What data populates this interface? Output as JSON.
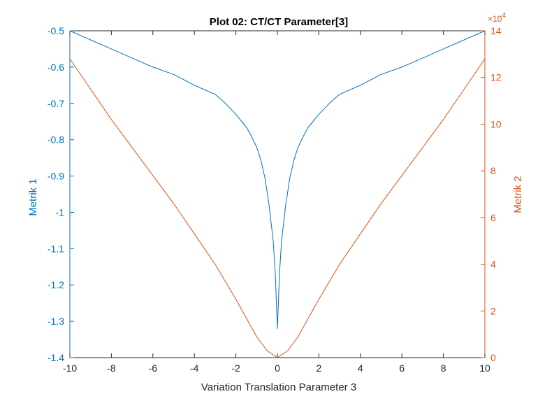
{
  "chart_data": {
    "type": "line",
    "title": "Plot 02: CT/CT Parameter[3]",
    "xlabel": "Variation Translation Parameter 3",
    "ylabel_left": "Metrik 1",
    "ylabel_right": "Metrik 2",
    "right_axis_exponent": "×10",
    "right_axis_exponent_power": "4",
    "xlim": [
      -10,
      10
    ],
    "ylim_left": [
      -1.4,
      -0.5
    ],
    "ylim_right": [
      0,
      140000
    ],
    "x_ticks": [
      "-10",
      "-8",
      "-6",
      "-4",
      "-2",
      "0",
      "2",
      "4",
      "6",
      "8",
      "10"
    ],
    "y_left_ticks": [
      "-0.5",
      "-0.6",
      "-0.7",
      "-0.8",
      "-0.9",
      "-1",
      "-1.1",
      "-1.2",
      "-1.3",
      "-1.4"
    ],
    "y_right_ticks": [
      "14",
      "12",
      "10",
      "8",
      "6",
      "4",
      "2",
      "0"
    ],
    "grid": false,
    "colors": {
      "series1": "#0072BD",
      "series2": "#D95319"
    },
    "series": [
      {
        "axis": "left",
        "x": [
          -10,
          -9,
          -8,
          -7,
          -6,
          -5,
          -4,
          -3,
          -2.5,
          -2,
          -1.5,
          -1.3,
          -1,
          -0.8,
          -0.6,
          -0.4,
          -0.2,
          -0.1,
          0,
          0.1,
          0.2,
          0.4,
          0.6,
          0.8,
          1,
          1.3,
          1.5,
          2,
          2.5,
          3,
          4,
          5,
          6,
          7,
          8,
          9,
          10
        ],
        "values": [
          -0.5,
          -0.525,
          -0.55,
          -0.575,
          -0.6,
          -0.62,
          -0.65,
          -0.675,
          -0.7,
          -0.73,
          -0.765,
          -0.785,
          -0.82,
          -0.855,
          -0.905,
          -0.98,
          -1.08,
          -1.17,
          -1.32,
          -1.17,
          -1.08,
          -0.98,
          -0.905,
          -0.855,
          -0.82,
          -0.785,
          -0.765,
          -0.73,
          -0.7,
          -0.675,
          -0.65,
          -0.62,
          -0.6,
          -0.575,
          -0.55,
          -0.525,
          -0.5
        ]
      },
      {
        "axis": "right",
        "x": [
          -10,
          -9,
          -8,
          -7,
          -6,
          -5,
          -4,
          -3,
          -2,
          -1.5,
          -1,
          -0.5,
          0,
          0.5,
          1,
          1.5,
          2,
          3,
          4,
          5,
          6,
          7,
          8,
          9,
          10
        ],
        "values": [
          128000,
          115000,
          102000,
          90000,
          78000,
          66000,
          53000,
          40000,
          25000,
          17000,
          9000,
          3000,
          0,
          3000,
          9000,
          17000,
          25000,
          40000,
          53000,
          66000,
          78000,
          90000,
          102000,
          115000,
          128000
        ]
      }
    ]
  }
}
